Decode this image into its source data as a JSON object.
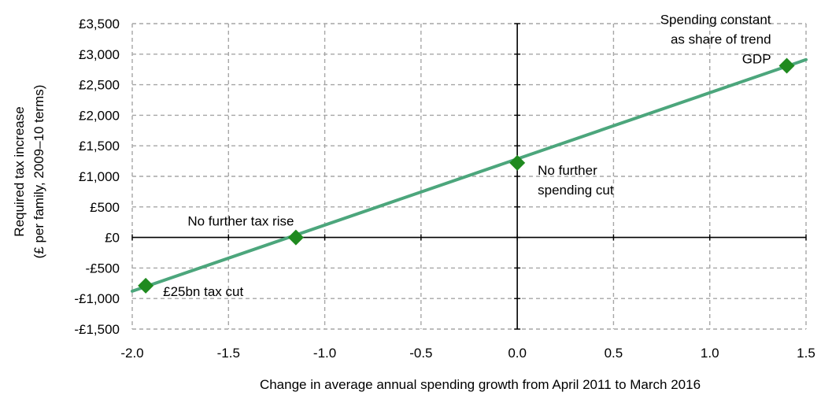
{
  "chart_data": {
    "type": "line",
    "xlabel": "Change in average annual spending growth from April 2011 to March 2016",
    "ylabel_lines": [
      "Required tax increase",
      "(£ per family, 2009–10 terms)"
    ],
    "xlim": [
      -2.0,
      1.5
    ],
    "ylim": [
      -1500,
      3500
    ],
    "x_ticks": [
      -2.0,
      -1.5,
      -1.0,
      -0.5,
      0.0,
      0.5,
      1.0,
      1.5
    ],
    "x_tick_labels": [
      "-2.0",
      "-1.5",
      "-1.0",
      "-0.5",
      "0.0",
      "0.5",
      "1.0",
      "1.5"
    ],
    "y_ticks": [
      3500,
      3000,
      2500,
      2000,
      1500,
      1000,
      500,
      0,
      -500,
      -1000,
      -1500
    ],
    "y_tick_labels": [
      "£3,500",
      "£3,000",
      "£2,500",
      "£2,000",
      "£1,500",
      "£1,000",
      "£500",
      "£0",
      "-£500",
      "-£1,000",
      "-£1,500"
    ],
    "grid": true,
    "line_color": "#4ca67c",
    "marker_color": "#1f8a1f",
    "series": [
      {
        "x": [
          -2.0,
          1.5
        ],
        "y": [
          -880,
          2910
        ]
      }
    ],
    "points": [
      {
        "x": -1.93,
        "y": -790,
        "label_lines": [
          "£25bn tax cut"
        ],
        "label_anchor": "start"
      },
      {
        "x": -1.15,
        "y": 0,
        "label_lines": [
          "No further tax rise"
        ],
        "label_anchor": "middle"
      },
      {
        "x": 0.0,
        "y": 1220,
        "label_lines": [
          "No further",
          "spending cut"
        ],
        "label_anchor": "start"
      },
      {
        "x": 1.4,
        "y": 2810,
        "label_lines": [
          "Spending constant",
          "as share of trend",
          "GDP"
        ],
        "label_anchor": "end"
      }
    ]
  }
}
